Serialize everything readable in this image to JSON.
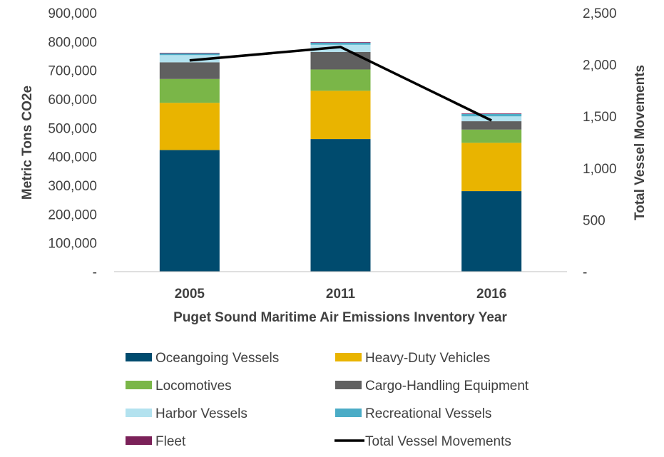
{
  "chart_data": {
    "type": "bar",
    "stacked": true,
    "title": "",
    "categories": [
      "2005",
      "2011",
      "2016"
    ],
    "xlabel": "Puget Sound Maritime Air Emissions Inventory Year",
    "ylabel": "Metric Tons CO2e",
    "y2label": "Total Vessel Movements",
    "ylim": [
      0,
      900000
    ],
    "y2lim": [
      0,
      2500
    ],
    "yticks": [
      0,
      100000,
      200000,
      300000,
      400000,
      500000,
      600000,
      700000,
      800000,
      900000
    ],
    "yticklabels": [
      "-",
      "100,000",
      "200,000",
      "300,000",
      "400,000",
      "500,000",
      "600,000",
      "700,000",
      "800,000",
      "900,000"
    ],
    "y2ticks": [
      0,
      500,
      1000,
      1500,
      2000,
      2500
    ],
    "y2ticklabels": [
      "-",
      "500",
      "1,000",
      "1,500",
      "2,000",
      "2,500"
    ],
    "grid": false,
    "legend_position": "bottom",
    "series": [
      {
        "name": "Oceangoing Vessels",
        "type": "bar",
        "color": "#004B6E",
        "values": [
          423000,
          461000,
          280000
        ]
      },
      {
        "name": "Heavy-Duty Vehicles",
        "type": "bar",
        "color": "#E9B400",
        "values": [
          164000,
          168000,
          168000
        ]
      },
      {
        "name": "Locomotives",
        "type": "bar",
        "color": "#7AB648",
        "values": [
          83000,
          74000,
          46000
        ]
      },
      {
        "name": "Cargo-Handling Equipment",
        "type": "bar",
        "color": "#606060",
        "values": [
          58000,
          61000,
          29000
        ]
      },
      {
        "name": "Harbor Vessels",
        "type": "bar",
        "color": "#B3E2EF",
        "values": [
          25000,
          25000,
          17000
        ]
      },
      {
        "name": "Recreational Vessels",
        "type": "bar",
        "color": "#4BACC6",
        "values": [
          6000,
          7000,
          8000
        ]
      },
      {
        "name": "Fleet",
        "type": "bar",
        "color": "#7B2159",
        "values": [
          2000,
          2000,
          2000
        ]
      },
      {
        "name": "Total Vessel Movements",
        "type": "line",
        "axis": "right",
        "color": "#000000",
        "values": [
          2040,
          2170,
          1460
        ]
      }
    ]
  }
}
